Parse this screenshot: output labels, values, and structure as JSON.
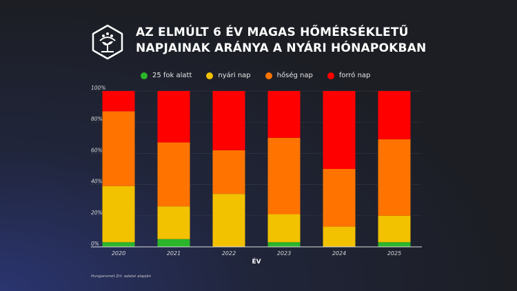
{
  "header": {
    "title_line1": "AZ ELMÚLT 6 ÉV MAGAS HŐMÉRSÉKLETŰ",
    "title_line2": "NAPJAINAK ARÁNYA A NYÁRI HÓNAPOKBAN",
    "logo_icon": "seedling-hexagon-icon"
  },
  "chart_data": {
    "type": "bar",
    "stacked": true,
    "percent": true,
    "categories": [
      "2020",
      "2021",
      "2022",
      "2023",
      "2024",
      "2025"
    ],
    "series": [
      {
        "name": "25 fok alatt",
        "color": "#2bb52b",
        "values": [
          3,
          5,
          0,
          3,
          0,
          3
        ]
      },
      {
        "name": "nyári nap",
        "color": "#f2c100",
        "values": [
          36,
          21,
          34,
          18,
          13,
          17
        ]
      },
      {
        "name": "hőség nap",
        "color": "#ff7400",
        "values": [
          48,
          41,
          28,
          49,
          37,
          49
        ]
      },
      {
        "name": "forró nap",
        "color": "#ff0000",
        "values": [
          13,
          33,
          38,
          30,
          50,
          31
        ]
      }
    ],
    "xlabel": "ÉV",
    "ylabel": "",
    "ylim": [
      0,
      100
    ],
    "yticks": [
      "0%",
      "20%",
      "40%",
      "60%",
      "80%",
      "100%"
    ],
    "grid": true,
    "legend_position": "top"
  },
  "footer": {
    "source": "Hungaromet Zrt. adatai alapján"
  }
}
